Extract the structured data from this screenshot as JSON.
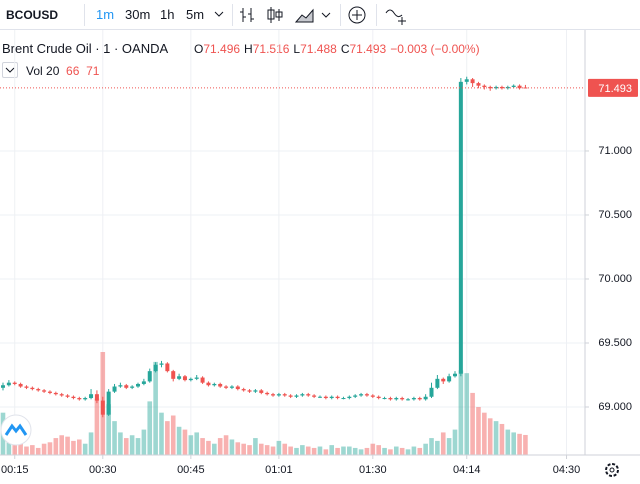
{
  "toolbar": {
    "symbol": "BCOUSD",
    "intervals": [
      "1m",
      "30m",
      "1h",
      "5m"
    ]
  },
  "legend": {
    "title": "Brent Crude Oil · 1 · OANDA",
    "ohlc": [
      {
        "key": "O",
        "value": "71.496"
      },
      {
        "key": "H",
        "value": "71.516"
      },
      {
        "key": "L",
        "value": "71.488"
      },
      {
        "key": "C",
        "value": "71.493"
      }
    ],
    "change": "−0.003 (−0.00%)",
    "volume_label": "Vol 20",
    "volume_values": [
      "66",
      "71"
    ]
  },
  "chart_data": {
    "type": "candlestick",
    "up_color": "#26a69a",
    "down_color": "#ef5350",
    "grid": true,
    "ylim": [
      68.625,
      71.945
    ],
    "yticks": [
      {
        "value": 69,
        "label": "69.000"
      },
      {
        "value": 69.5,
        "label": "69.500"
      },
      {
        "value": 70,
        "label": "70.000"
      },
      {
        "value": 70.5,
        "label": "70.500"
      },
      {
        "value": 71,
        "label": "71.000"
      }
    ],
    "current_price": {
      "value": 71.493,
      "label": "71.493"
    },
    "categories": [
      null,
      null,
      "00:15",
      null,
      null,
      null,
      null,
      null,
      null,
      null,
      null,
      null,
      null,
      null,
      null,
      null,
      null,
      "00:30",
      null,
      null,
      null,
      null,
      null,
      null,
      null,
      null,
      null,
      null,
      null,
      null,
      null,
      null,
      "00:45",
      null,
      null,
      null,
      null,
      null,
      null,
      null,
      null,
      null,
      null,
      null,
      null,
      null,
      null,
      "01:01",
      null,
      null,
      null,
      null,
      null,
      null,
      null,
      null,
      null,
      null,
      null,
      null,
      null,
      null,
      null,
      "01:30",
      null,
      null,
      null,
      null,
      null,
      null,
      null,
      null,
      null,
      null,
      null,
      null,
      null,
      null,
      null,
      "04:14",
      null,
      null,
      null,
      null,
      null,
      null,
      null,
      null,
      null,
      null,
      null,
      null,
      null,
      null,
      null,
      null,
      "04:30"
    ],
    "ohlc": [
      [
        69.15,
        69.19,
        69.13,
        69.17
      ],
      [
        69.17,
        69.21,
        69.16,
        69.19
      ],
      [
        69.19,
        69.2,
        69.17,
        69.18
      ],
      [
        69.18,
        69.19,
        69.15,
        69.16
      ],
      [
        69.16,
        69.17,
        69.14,
        69.15
      ],
      [
        69.15,
        69.16,
        69.13,
        69.14
      ],
      [
        69.14,
        69.15,
        69.12,
        69.13
      ],
      [
        69.13,
        69.14,
        69.11,
        69.12
      ],
      [
        69.12,
        69.13,
        69.1,
        69.11
      ],
      [
        69.11,
        69.12,
        69.09,
        69.1
      ],
      [
        69.1,
        69.11,
        69.08,
        69.09
      ],
      [
        69.09,
        69.1,
        69.07,
        69.08
      ],
      [
        69.08,
        69.09,
        69.06,
        69.07
      ],
      [
        69.07,
        69.08,
        69.05,
        69.06
      ],
      [
        69.06,
        69.08,
        69.05,
        69.07
      ],
      [
        69.07,
        69.14,
        69.06,
        69.1
      ],
      [
        69.1,
        69.13,
        69.03,
        69.05
      ],
      [
        69.05,
        69.08,
        68.92,
        68.94
      ],
      [
        68.94,
        69.14,
        68.93,
        69.12
      ],
      [
        69.12,
        69.18,
        69.11,
        69.16
      ],
      [
        69.16,
        69.19,
        69.15,
        69.17
      ],
      [
        69.17,
        69.18,
        69.14,
        69.15
      ],
      [
        69.15,
        69.17,
        69.14,
        69.16
      ],
      [
        69.16,
        69.19,
        69.15,
        69.18
      ],
      [
        69.18,
        69.22,
        69.17,
        69.2
      ],
      [
        69.2,
        69.3,
        69.19,
        69.28
      ],
      [
        69.28,
        69.35,
        69.27,
        69.33
      ],
      [
        69.33,
        69.36,
        69.31,
        69.34
      ],
      [
        69.34,
        69.35,
        69.27,
        69.28
      ],
      [
        69.28,
        69.29,
        69.2,
        69.22
      ],
      [
        69.22,
        69.26,
        69.21,
        69.24
      ],
      [
        69.24,
        69.25,
        69.2,
        69.21
      ],
      [
        69.21,
        69.23,
        69.2,
        69.22
      ],
      [
        69.22,
        69.25,
        69.21,
        69.23
      ],
      [
        69.23,
        69.24,
        69.18,
        69.19
      ],
      [
        69.19,
        69.2,
        69.16,
        69.17
      ],
      [
        69.17,
        69.19,
        69.16,
        69.18
      ],
      [
        69.18,
        69.19,
        69.15,
        69.16
      ],
      [
        69.16,
        69.17,
        69.14,
        69.15
      ],
      [
        69.15,
        69.17,
        69.14,
        69.16
      ],
      [
        69.16,
        69.17,
        69.13,
        69.14
      ],
      [
        69.14,
        69.15,
        69.12,
        69.13
      ],
      [
        69.13,
        69.14,
        69.11,
        69.12
      ],
      [
        69.12,
        69.14,
        69.11,
        69.13
      ],
      [
        69.13,
        69.14,
        69.1,
        69.11
      ],
      [
        69.11,
        69.12,
        69.09,
        69.1
      ],
      [
        69.1,
        69.11,
        69.08,
        69.09
      ],
      [
        69.09,
        69.11,
        69.08,
        69.1
      ],
      [
        69.1,
        69.11,
        69.08,
        69.09
      ],
      [
        69.09,
        69.1,
        69.07,
        69.08
      ],
      [
        69.08,
        69.1,
        69.07,
        69.09
      ],
      [
        69.09,
        69.11,
        69.08,
        69.1
      ],
      [
        69.1,
        69.11,
        69.08,
        69.09
      ],
      [
        69.09,
        69.1,
        69.07,
        69.08
      ],
      [
        69.08,
        69.09,
        69.07,
        69.08
      ],
      [
        69.08,
        69.09,
        69.06,
        69.07
      ],
      [
        69.07,
        69.09,
        69.06,
        69.08
      ],
      [
        69.08,
        69.09,
        69.06,
        69.07
      ],
      [
        69.07,
        69.08,
        69.06,
        69.07
      ],
      [
        69.07,
        69.09,
        69.06,
        69.08
      ],
      [
        69.08,
        69.1,
        69.07,
        69.09
      ],
      [
        69.09,
        69.11,
        69.08,
        69.1
      ],
      [
        69.1,
        69.11,
        69.08,
        69.09
      ],
      [
        69.09,
        69.1,
        69.07,
        69.08
      ],
      [
        69.08,
        69.09,
        69.06,
        69.07
      ],
      [
        69.07,
        69.08,
        69.06,
        69.07
      ],
      [
        69.07,
        69.08,
        69.05,
        69.06
      ],
      [
        69.06,
        69.08,
        69.05,
        69.07
      ],
      [
        69.07,
        69.08,
        69.05,
        69.06
      ],
      [
        69.06,
        69.07,
        69.05,
        69.06
      ],
      [
        69.06,
        69.08,
        69.05,
        69.07
      ],
      [
        69.07,
        69.08,
        69.05,
        69.06
      ],
      [
        69.06,
        69.1,
        69.05,
        69.08
      ],
      [
        69.08,
        69.19,
        69.07,
        69.15
      ],
      [
        69.15,
        69.25,
        69.14,
        69.22
      ],
      [
        69.22,
        69.23,
        69.18,
        69.2
      ],
      [
        69.2,
        69.26,
        69.19,
        69.24
      ],
      [
        69.24,
        69.28,
        69.23,
        69.26
      ],
      [
        69.26,
        71.57,
        69.24,
        71.54
      ],
      [
        71.54,
        71.58,
        71.52,
        71.56
      ],
      [
        71.56,
        71.57,
        71.5,
        71.53
      ],
      [
        71.53,
        71.54,
        71.49,
        71.51
      ],
      [
        71.51,
        71.52,
        71.48,
        71.5
      ],
      [
        71.5,
        71.51,
        71.47,
        71.49
      ],
      [
        71.49,
        71.51,
        71.48,
        71.5
      ],
      [
        71.5,
        71.51,
        71.48,
        71.49
      ],
      [
        71.49,
        71.51,
        71.48,
        71.5
      ],
      [
        71.5,
        71.52,
        71.49,
        71.51
      ],
      [
        71.51,
        71.52,
        71.48,
        71.49
      ],
      [
        71.496,
        71.516,
        71.488,
        71.493
      ],
      null,
      null,
      null,
      null,
      null,
      null,
      null
    ],
    "volume": [
      150,
      60,
      50,
      40,
      30,
      35,
      25,
      40,
      45,
      60,
      70,
      65,
      50,
      55,
      40,
      80,
      200,
      365,
      180,
      120,
      80,
      60,
      70,
      60,
      90,
      190,
      330,
      150,
      120,
      140,
      100,
      90,
      70,
      80,
      60,
      50,
      40,
      60,
      70,
      55,
      45,
      40,
      35,
      60,
      40,
      35,
      30,
      50,
      40,
      30,
      25,
      35,
      30,
      25,
      30,
      20,
      35,
      25,
      30,
      30,
      25,
      20,
      25,
      40,
      35,
      25,
      20,
      30,
      25,
      20,
      30,
      25,
      40,
      60,
      50,
      80,
      60,
      90,
      300,
      290,
      220,
      170,
      150,
      130,
      120,
      110,
      90,
      80,
      75,
      71,
      null,
      null,
      null,
      null,
      null,
      null,
      null
    ]
  }
}
